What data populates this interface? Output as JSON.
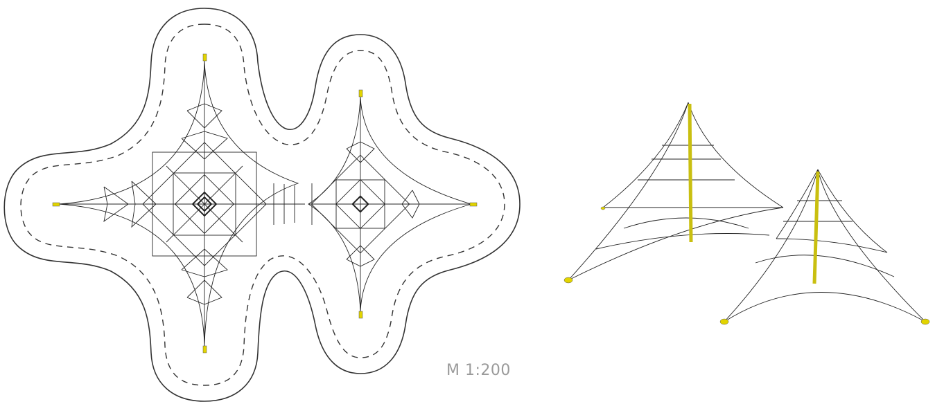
{
  "scale_label": "M 1:200",
  "colors": {
    "line": "#222222",
    "boundary": "#333333",
    "anchor": "#e2d400",
    "mast": "#c9bf10",
    "label": "#9a9a9a"
  }
}
